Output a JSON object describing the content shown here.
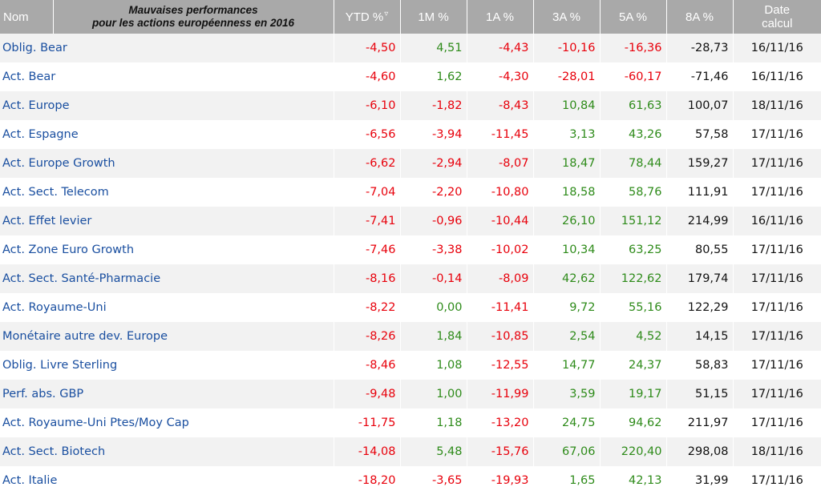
{
  "header": {
    "name_label": "Nom",
    "title_line1": "Mauvaises performances",
    "title_line2": "pour les actions européenness en 2016",
    "ytd_label": "YTD %",
    "m1_label": "1M %",
    "a1_label": "1A %",
    "a3_label": "3A %",
    "a5_label": "5A %",
    "a8_label": "8A %",
    "date_line1": "Date",
    "date_line2": "calcul"
  },
  "colors": {
    "negative": "#e8000b",
    "positive": "#2e8b1a",
    "link": "#1a4fa0",
    "header_bg": "#a9a9a9"
  },
  "rows": [
    {
      "name": "Oblig. Bear",
      "ytd": "-4,50",
      "m1": "4,51",
      "a1": "-4,43",
      "a3": "-10,16",
      "a5": "-16,36",
      "a8": "-28,73",
      "date": "16/11/16"
    },
    {
      "name": "Act. Bear",
      "ytd": "-4,60",
      "m1": "1,62",
      "a1": "-4,30",
      "a3": "-28,01",
      "a5": "-60,17",
      "a8": "-71,46",
      "date": "16/11/16"
    },
    {
      "name": "Act. Europe",
      "ytd": "-6,10",
      "m1": "-1,82",
      "a1": "-8,43",
      "a3": "10,84",
      "a5": "61,63",
      "a8": "100,07",
      "date": "18/11/16"
    },
    {
      "name": "Act. Espagne",
      "ytd": "-6,56",
      "m1": "-3,94",
      "a1": "-11,45",
      "a3": "3,13",
      "a5": "43,26",
      "a8": "57,58",
      "date": "17/11/16"
    },
    {
      "name": "Act. Europe Growth",
      "ytd": "-6,62",
      "m1": "-2,94",
      "a1": "-8,07",
      "a3": "18,47",
      "a5": "78,44",
      "a8": "159,27",
      "date": "17/11/16"
    },
    {
      "name": "Act. Sect. Telecom",
      "ytd": "-7,04",
      "m1": "-2,20",
      "a1": "-10,80",
      "a3": "18,58",
      "a5": "58,76",
      "a8": "111,91",
      "date": "17/11/16"
    },
    {
      "name": "Act. Effet levier",
      "ytd": "-7,41",
      "m1": "-0,96",
      "a1": "-10,44",
      "a3": "26,10",
      "a5": "151,12",
      "a8": "214,99",
      "date": "16/11/16"
    },
    {
      "name": "Act. Zone Euro Growth",
      "ytd": "-7,46",
      "m1": "-3,38",
      "a1": "-10,02",
      "a3": "10,34",
      "a5": "63,25",
      "a8": "80,55",
      "date": "17/11/16"
    },
    {
      "name": "Act. Sect. Santé-Pharmacie",
      "ytd": "-8,16",
      "m1": "-0,14",
      "a1": "-8,09",
      "a3": "42,62",
      "a5": "122,62",
      "a8": "179,74",
      "date": "17/11/16"
    },
    {
      "name": "Act. Royaume-Uni",
      "ytd": "-8,22",
      "m1": "0,00",
      "a1": "-11,41",
      "a3": "9,72",
      "a5": "55,16",
      "a8": "122,29",
      "date": "17/11/16"
    },
    {
      "name": "Monétaire autre dev. Europe",
      "ytd": "-8,26",
      "m1": "1,84",
      "a1": "-10,85",
      "a3": "2,54",
      "a5": "4,52",
      "a8": "14,15",
      "date": "17/11/16"
    },
    {
      "name": "Oblig. Livre Sterling",
      "ytd": "-8,46",
      "m1": "1,08",
      "a1": "-12,55",
      "a3": "14,77",
      "a5": "24,37",
      "a8": "58,83",
      "date": "17/11/16"
    },
    {
      "name": "Perf. abs. GBP",
      "ytd": "-9,48",
      "m1": "1,00",
      "a1": "-11,99",
      "a3": "3,59",
      "a5": "19,17",
      "a8": "51,15",
      "date": "17/11/16"
    },
    {
      "name": "Act. Royaume-Uni Ptes/Moy Cap",
      "ytd": "-11,75",
      "m1": "1,18",
      "a1": "-13,20",
      "a3": "24,75",
      "a5": "94,62",
      "a8": "211,97",
      "date": "17/11/16"
    },
    {
      "name": "Act. Sect. Biotech",
      "ytd": "-14,08",
      "m1": "5,48",
      "a1": "-15,76",
      "a3": "67,06",
      "a5": "220,40",
      "a8": "298,08",
      "date": "18/11/16"
    },
    {
      "name": "Act. Italie",
      "ytd": "-18,20",
      "m1": "-3,65",
      "a1": "-19,93",
      "a3": "1,65",
      "a5": "42,13",
      "a8": "31,99",
      "date": "17/11/16"
    }
  ]
}
